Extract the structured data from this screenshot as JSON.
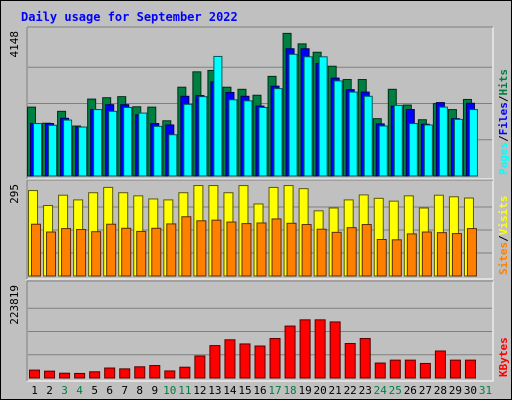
{
  "chart_data": {
    "type": "bar",
    "title": "Daily usage for September 2022",
    "categories": [
      "1",
      "2",
      "3",
      "4",
      "5",
      "6",
      "7",
      "8",
      "9",
      "10",
      "11",
      "12",
      "13",
      "14",
      "15",
      "16",
      "17",
      "18",
      "19",
      "20",
      "21",
      "22",
      "23",
      "24",
      "25",
      "26",
      "27",
      "28",
      "29",
      "30",
      "31"
    ],
    "weekend_days": [
      "3",
      "4",
      "10",
      "11",
      "17",
      "18",
      "24",
      "25",
      "31"
    ],
    "panels": [
      {
        "id": "hits",
        "ylabel_max": "4148",
        "ymax": 4148,
        "right_labels": [
          "Pages",
          "Files",
          "Hits"
        ],
        "series": [
          {
            "name": "Hits",
            "color": "#008040",
            "values": [
              1970,
              1510,
              1850,
              1430,
              2200,
              2240,
              2270,
              1980,
              1970,
              1580,
              2540,
              2980,
              3020,
              2540,
              2480,
              2310,
              2850,
              4080,
              3780,
              3540,
              3140,
              2760,
              2760,
              1640,
              2480,
              2030,
              1610,
              2070,
              1900,
              2190,
              0
            ]
          },
          {
            "name": "Files",
            "color": "#0000ff",
            "values": [
              1500,
              1500,
              1650,
              1400,
              1900,
              2040,
              2040,
              1750,
              1500,
              1460,
              2280,
              2300,
              2690,
              2390,
              2280,
              2000,
              2570,
              3640,
              3640,
              3220,
              2800,
              2470,
              2400,
              1490,
              2000,
              1900,
              1480,
              2100,
              1640,
              2080,
              0
            ]
          },
          {
            "name": "Pages",
            "color": "#00ffff",
            "values": [
              1500,
              1450,
              1600,
              1400,
              1900,
              1850,
              1960,
              1800,
              1420,
              1180,
              2050,
              2270,
              3420,
              2180,
              2150,
              1960,
              2500,
              3480,
              3410,
              3410,
              2720,
              2400,
              2280,
              1430,
              2020,
              1500,
              1460,
              1970,
              1620,
              1900,
              0
            ]
          }
        ]
      },
      {
        "id": "sites",
        "ylabel_max": "295",
        "ymax": 295,
        "right_labels": [
          "Sites",
          "Visits"
        ],
        "series": [
          {
            "name": "Visits",
            "color": "#ffff00",
            "values": [
              274,
              226,
              259,
              244,
              267,
              284,
              267,
              257,
              247,
              244,
              267,
              290,
              290,
              267,
              290,
              231,
              284,
              290,
              280,
              209,
              218,
              244,
              260,
              249,
              240,
              257,
              218,
              259,
              254,
              250,
              0
            ]
          },
          {
            "name": "Sites",
            "color": "#ff8000",
            "values": [
              166,
              141,
              152,
              149,
              142,
              166,
              153,
              143,
              153,
              167,
              190,
              177,
              179,
              173,
              168,
              170,
              183,
              169,
              165,
              150,
              140,
              155,
              165,
              117,
              116,
              135,
              141,
              139,
              136,
              152,
              0
            ]
          }
        ]
      },
      {
        "id": "kbytes",
        "ylabel_max": "223819",
        "ymax": 223819,
        "right_labels": [
          "KBytes"
        ],
        "series": [
          {
            "name": "KBytes",
            "color": "#ff0000",
            "values": [
              19000,
              16500,
              11500,
              11000,
              15000,
              24000,
              22000,
              27000,
              30000,
              17000,
              26000,
              53000,
              78000,
              92000,
              82000,
              77000,
              95000,
              125000,
              140000,
              140000,
              135000,
              83000,
              95000,
              36000,
              43000,
              43000,
              35000,
              65000,
              43000,
              43000,
              0
            ]
          }
        ]
      }
    ]
  }
}
